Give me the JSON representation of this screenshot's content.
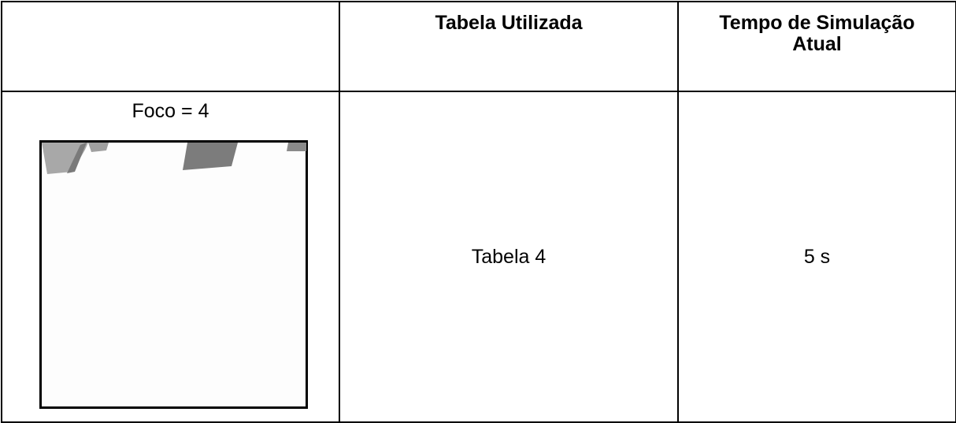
{
  "table": {
    "header": [
      "",
      "Tabela Utilizada",
      "Tempo de Simulação Atual"
    ],
    "rows": [
      [
        "Foco = 4",
        "Tabela 4",
        "5 s"
      ]
    ]
  }
}
